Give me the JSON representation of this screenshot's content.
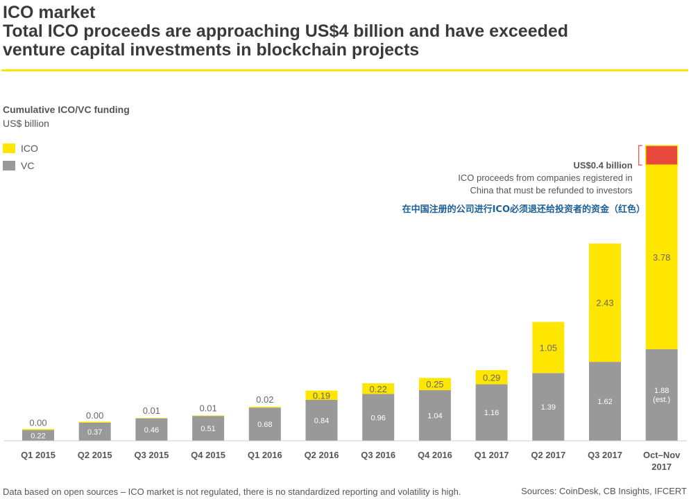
{
  "header": {
    "line1": "ICO market",
    "line2": "Total ICO proceeds are approaching US$4 billion and have exceeded",
    "line3": "venture capital investments in blockchain projects"
  },
  "colors": {
    "ico": "#ffe600",
    "vc": "#999999",
    "refund": "#e8473b",
    "rule": "#ffe600",
    "axis": "#cccccc",
    "text": "#555555",
    "annotation_cn": "#1a5f96"
  },
  "footer": {
    "note": "Data based on open sources – ICO market is not regulated, there is no standardized reporting and volatility is high.",
    "sources": "Sources: CoinDesk, CB Insights, IFCERT"
  },
  "chart_data": {
    "type": "bar",
    "stacked": true,
    "title": "Cumulative ICO/VC funding",
    "ylabel": "US$ billion",
    "ylim": [
      0,
      6.06
    ],
    "categories": [
      "Q1 2015",
      "Q2 2015",
      "Q3 2015",
      "Q4 2015",
      "Q1 2016",
      "Q2 2016",
      "Q3 2016",
      "Q4 2016",
      "Q1 2017",
      "Q2 2017",
      "Q3 2017",
      "Oct–Nov 2017"
    ],
    "series": [
      {
        "name": "VC",
        "values": [
          0.22,
          0.37,
          0.46,
          0.51,
          0.68,
          0.84,
          0.96,
          1.04,
          1.16,
          1.39,
          1.62,
          1.88
        ],
        "labels": [
          "0.22",
          "0.37",
          "0.46",
          "0.51",
          "0.68",
          "0.84",
          "0.96",
          "1.04",
          "1.16",
          "1.39",
          "1.62",
          "1.88 (est.)"
        ]
      },
      {
        "name": "ICO",
        "values": [
          0.0,
          0.0,
          0.01,
          0.01,
          0.02,
          0.19,
          0.22,
          0.25,
          0.29,
          1.05,
          2.43,
          3.78
        ],
        "labels": [
          "0.00",
          "0.00",
          "0.01",
          "0.01",
          "0.02",
          "0.19",
          "0.22",
          "0.25",
          "0.29",
          "1.05",
          "2.43",
          "3.78"
        ]
      },
      {
        "name": "Refund (China)",
        "values": [
          0,
          0,
          0,
          0,
          0,
          0,
          0,
          0,
          0,
          0,
          0,
          0.4
        ],
        "labels": [
          "",
          "",
          "",
          "",
          "",
          "",
          "",
          "",
          "",
          "",
          "",
          ""
        ]
      }
    ],
    "legend": [
      "ICO",
      "VC"
    ],
    "legend_position": "top-left",
    "annotation": {
      "title": "US$0.4 billion",
      "line1": "ICO proceeds from companies registered in",
      "line2": "China that must be refunded to investors",
      "chinese": "在中国注册的公司进行ICO必须退还给投资者的资金（红色）"
    }
  }
}
